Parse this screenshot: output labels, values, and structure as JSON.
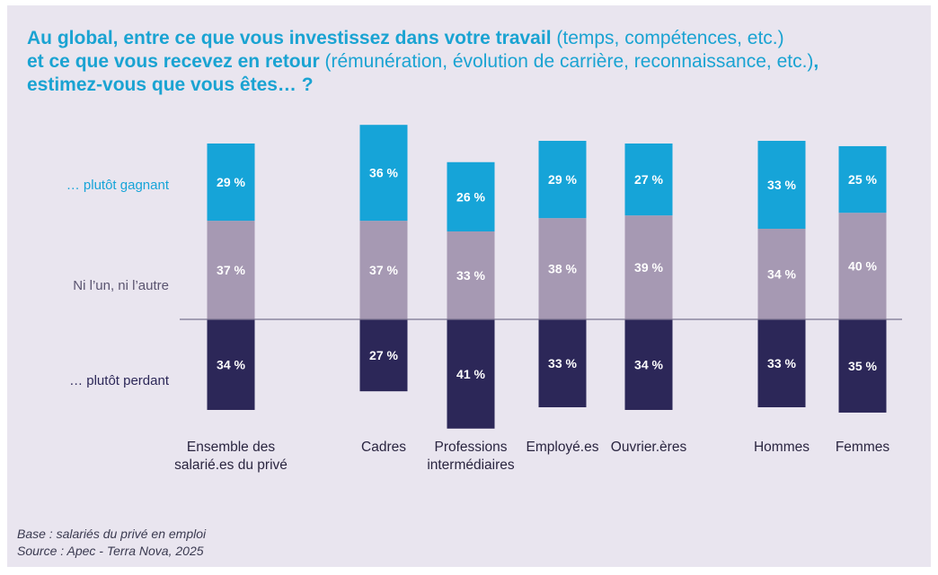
{
  "title": {
    "line1_bold": "Au global, entre ce que vous investissez dans votre travail",
    "line1_normal": " (temps, compétences, etc.)",
    "line2_bold": "et ce que vous recevez en retour",
    "line2_normal": " (rémunération, évolution de carrière, reconnaissance, etc.)",
    "line2_end": ",",
    "line3_bold": "estimez-vous que vous êtes… ?"
  },
  "source": {
    "base": "Base : salariés du privé en emploi",
    "source": "Source : Apec - Terra Nova, 2025"
  },
  "colors": {
    "gagnant": "#16a4d8",
    "neutre": "#a699b3",
    "perdant": "#2c2758",
    "baseline": "#7a7390",
    "label_neutre": "#5a5470"
  },
  "chart_data": {
    "type": "bar",
    "stacked": "diverging",
    "categories": [
      "Ensemble des salarié.es du privé",
      "Cadres",
      "Professions intermédiaires",
      "Employé.es",
      "Ouvrier.ères",
      "Hommes",
      "Femmes"
    ],
    "category_lines": [
      [
        "Ensemble des",
        "salarié.es du privé"
      ],
      [
        "Cadres"
      ],
      [
        "Professions",
        "intermédiaires"
      ],
      [
        "Employé.es"
      ],
      [
        "Ouvrier.ères"
      ],
      [
        "Hommes"
      ],
      [
        "Femmes"
      ]
    ],
    "series": [
      {
        "name": "… plutôt gagnant",
        "key": "gagnant",
        "direction": "up",
        "values": [
          29,
          36,
          26,
          29,
          27,
          33,
          25
        ]
      },
      {
        "name": "Ni l'un, ni l'autre",
        "key": "neutre",
        "direction": "up",
        "values": [
          37,
          37,
          33,
          38,
          39,
          34,
          40
        ]
      },
      {
        "name": "… plutôt perdant",
        "key": "perdant",
        "direction": "down",
        "values": [
          34,
          27,
          41,
          33,
          34,
          33,
          35
        ]
      }
    ],
    "value_suffix": " %",
    "row_labels": {
      "gagnant": "… plutôt gagnant",
      "neutre": "Ni l’un, ni l’autre",
      "perdant": "… plutôt perdant"
    }
  }
}
